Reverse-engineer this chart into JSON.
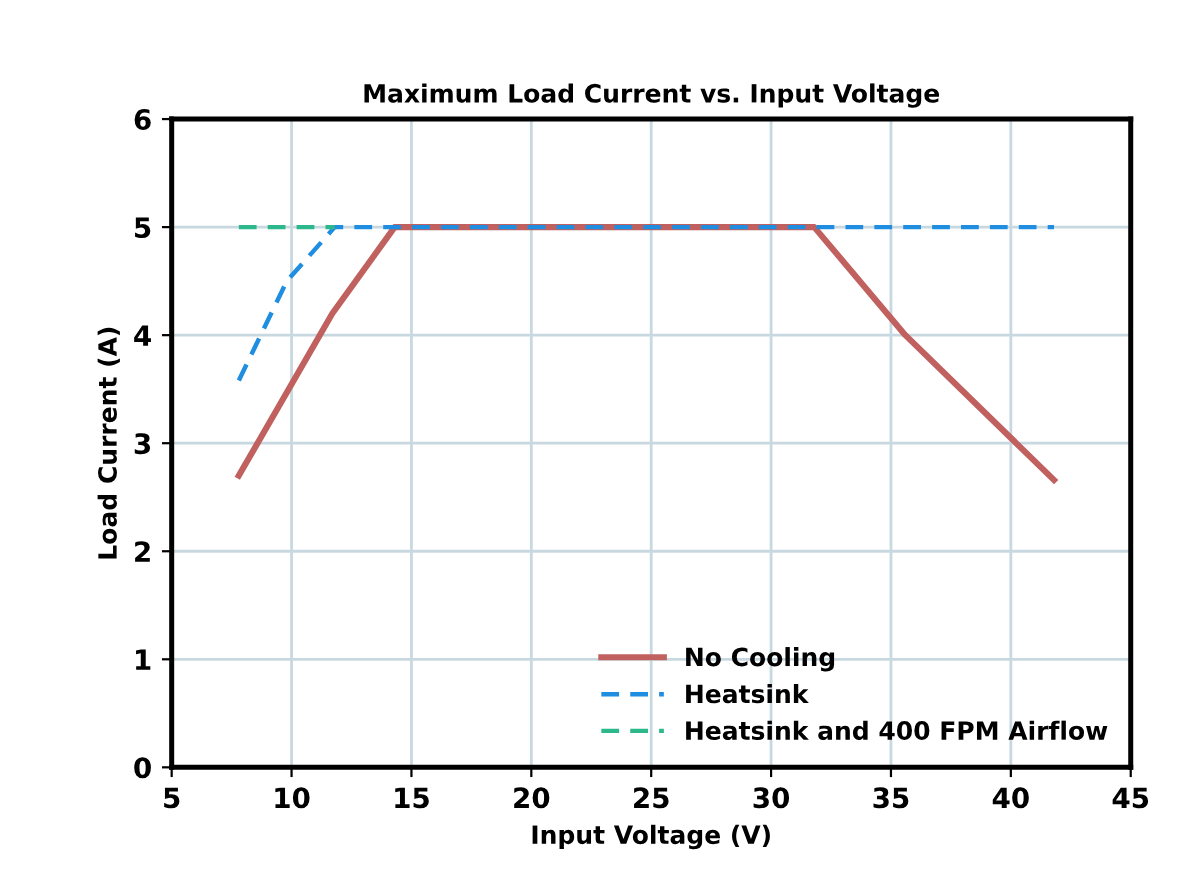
{
  "chart_data": {
    "type": "line",
    "title": "Maximum Load Current vs. Input Voltage",
    "xlabel": "Input Voltage (V)",
    "ylabel": "Load Current (A)",
    "xlim": [
      5,
      45
    ],
    "xticks": [
      5,
      10,
      15,
      20,
      25,
      30,
      35,
      40,
      45
    ],
    "ylim": [
      0,
      6
    ],
    "yticks": [
      0,
      1,
      2,
      3,
      4,
      5,
      6
    ],
    "grid": true,
    "legend": "bottom right",
    "series": [
      {
        "name": "No Cooling",
        "color": "#c0605f",
        "line_style": "solid",
        "x": [
          7.8,
          11.7,
          14.3,
          31.8,
          35.6,
          41.8
        ],
        "values": [
          2.7,
          4.2,
          5,
          5,
          4.0,
          2.66
        ]
      },
      {
        "name": "Heatsink",
        "color": "#1f8ee0",
        "line_style": "dashed",
        "x": [
          7.8,
          9.8,
          11.8,
          41.8
        ],
        "values": [
          3.58,
          4.5,
          5,
          5
        ]
      },
      {
        "name": "Heatsink and 400 FPM Airflow",
        "color": "#2cb88a",
        "line_style": "dashed",
        "x": [
          7.8,
          11.8
        ],
        "values": [
          5,
          5
        ]
      }
    ]
  }
}
